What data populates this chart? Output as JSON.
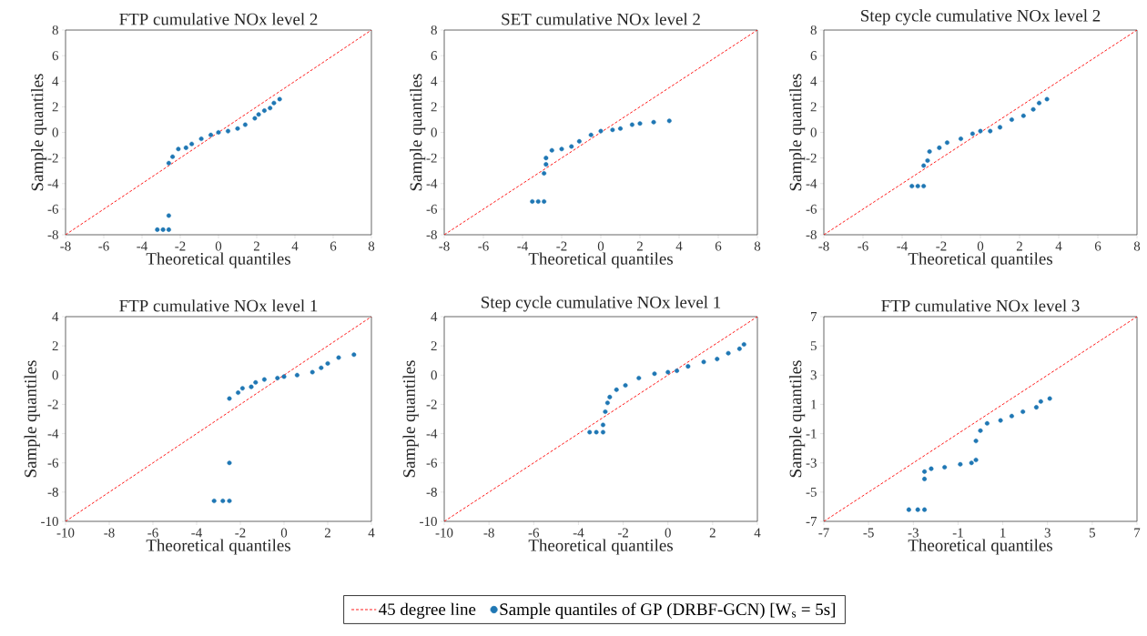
{
  "chart_data": [
    {
      "type": "scatter",
      "title": "FTP cumulative NOx level 2",
      "xlabel": "Theoretical quantiles",
      "ylabel": "Sample quantiles",
      "xlim": [
        -8,
        8
      ],
      "ylim": [
        -8,
        8
      ],
      "xticks": [
        -8,
        -6,
        -4,
        -2,
        0,
        2,
        4,
        6,
        8
      ],
      "yticks": [
        -8,
        -6,
        -4,
        -2,
        0,
        2,
        4,
        6,
        8
      ],
      "legend": "bottom",
      "series": [
        {
          "name": "45 degree line",
          "type": "line",
          "color": "#ff0000",
          "line_style": "dashed",
          "marker": "none",
          "x": [
            -8,
            8
          ],
          "values": [
            -8,
            8
          ]
        },
        {
          "name": "Sample quantiles of GP (DRBF-GCN) [W$_{s}$ = 5s]",
          "color": "#1f77b4",
          "marker": "circle",
          "x": [
            -3.2,
            -2.9,
            -2.6,
            -2.6,
            -2.6,
            -2.4,
            -2.1,
            -1.7,
            -1.4,
            -0.9,
            -0.4,
            0,
            0.5,
            1.0,
            1.4,
            1.9,
            2.1,
            2.4,
            2.7,
            2.9,
            3.2
          ],
          "values": [
            -7.6,
            -7.6,
            -7.6,
            -6.5,
            -2.4,
            -1.9,
            -1.3,
            -1.2,
            -0.9,
            -0.5,
            -0.2,
            0,
            0.1,
            0.3,
            0.6,
            1.1,
            1.4,
            1.7,
            1.9,
            2.3,
            2.6
          ]
        }
      ]
    },
    {
      "type": "scatter",
      "title": "SET cumulative NOx level 2",
      "xlabel": "Theoretical quantiles",
      "ylabel": "Sample quantiles",
      "xlim": [
        -8,
        8
      ],
      "ylim": [
        -8,
        8
      ],
      "xticks": [
        -8,
        -6,
        -4,
        -2,
        0,
        2,
        4,
        6,
        8
      ],
      "yticks": [
        -8,
        -6,
        -4,
        -2,
        0,
        2,
        4,
        6,
        8
      ],
      "series": [
        {
          "type": "line",
          "color": "#ff0000",
          "line_style": "dashed",
          "marker": "none",
          "x": [
            -8,
            8
          ],
          "values": [
            -8,
            8
          ]
        },
        {
          "color": "#1f77b4",
          "marker": "circle",
          "x": [
            -3.5,
            -3.2,
            -2.9,
            -2.9,
            -2.8,
            -2.8,
            -2.5,
            -2.0,
            -1.5,
            -1.1,
            -0.5,
            0,
            0.6,
            1.0,
            1.6,
            2.0,
            2.7,
            3.5
          ],
          "values": [
            -5.4,
            -5.4,
            -5.4,
            -3.2,
            -2.5,
            -2.0,
            -1.4,
            -1.3,
            -1.1,
            -0.7,
            -0.2,
            0.1,
            0.2,
            0.3,
            0.6,
            0.7,
            0.8,
            0.9
          ]
        }
      ]
    },
    {
      "type": "scatter",
      "title": "Step cycle cumulative NOx level 2",
      "xlabel": "Theoretical quantiles",
      "ylabel": "Sample quantiles",
      "xlim": [
        -8,
        8
      ],
      "ylim": [
        -8,
        8
      ],
      "xticks": [
        -8,
        -6,
        -4,
        -2,
        0,
        2,
        4,
        6,
        8
      ],
      "yticks": [
        -8,
        -6,
        -4,
        -2,
        0,
        2,
        4,
        6,
        8
      ],
      "series": [
        {
          "type": "line",
          "color": "#ff0000",
          "line_style": "dashed",
          "marker": "none",
          "x": [
            -8,
            8
          ],
          "values": [
            -8,
            8
          ]
        },
        {
          "color": "#1f77b4",
          "marker": "circle",
          "x": [
            -3.5,
            -3.2,
            -2.9,
            -2.9,
            -2.7,
            -2.6,
            -2.1,
            -1.7,
            -1.0,
            -0.4,
            0,
            0.5,
            1.0,
            1.6,
            2.2,
            2.7,
            3.0,
            3.4
          ],
          "values": [
            -4.2,
            -4.2,
            -4.2,
            -2.6,
            -2.2,
            -1.5,
            -1.2,
            -0.8,
            -0.5,
            -0.1,
            0.1,
            0.1,
            0.4,
            1.0,
            1.3,
            1.8,
            2.3,
            2.6
          ]
        }
      ]
    },
    {
      "type": "scatter",
      "title": "FTP cumulative NOx level 1",
      "xlabel": "Theoretical quantiles",
      "ylabel": "Sample quantiles",
      "xlim": [
        -10,
        4
      ],
      "ylim": [
        -10,
        4
      ],
      "xticks": [
        -10,
        -8,
        -6,
        -4,
        -2,
        0,
        2,
        4
      ],
      "yticks": [
        -10,
        -8,
        -6,
        -4,
        -2,
        0,
        2,
        4
      ],
      "series": [
        {
          "type": "line",
          "color": "#ff0000",
          "line_style": "dashed",
          "marker": "none",
          "x": [
            -10,
            4
          ],
          "values": [
            -10,
            4
          ]
        },
        {
          "color": "#1f77b4",
          "marker": "circle",
          "x": [
            -3.2,
            -2.8,
            -2.5,
            -2.5,
            -2.5,
            -2.1,
            -1.9,
            -1.5,
            -1.3,
            -0.9,
            -0.3,
            0,
            0.6,
            1.3,
            1.7,
            2.0,
            2.5,
            3.2
          ],
          "values": [
            -8.6,
            -8.6,
            -8.6,
            -6.0,
            -1.6,
            -1.2,
            -0.9,
            -0.8,
            -0.5,
            -0.3,
            -0.2,
            -0.1,
            0,
            0.2,
            0.5,
            0.8,
            1.2,
            1.4
          ]
        }
      ]
    },
    {
      "type": "scatter",
      "title": "Step cycle cumulative NOx level 1",
      "xlabel": "Theoretical quantiles",
      "ylabel": "Sample quantiles",
      "xlim": [
        -10,
        4
      ],
      "ylim": [
        -10,
        4
      ],
      "xticks": [
        -10,
        -8,
        -6,
        -4,
        -2,
        0,
        2,
        4
      ],
      "yticks": [
        -10,
        -8,
        -6,
        -4,
        -2,
        0,
        2,
        4
      ],
      "series": [
        {
          "type": "line",
          "color": "#ff0000",
          "line_style": "dashed",
          "marker": "none",
          "x": [
            -10,
            4
          ],
          "values": [
            -10,
            4
          ]
        },
        {
          "color": "#1f77b4",
          "marker": "circle",
          "x": [
            -3.5,
            -3.2,
            -2.9,
            -2.9,
            -2.8,
            -2.7,
            -2.6,
            -2.3,
            -1.9,
            -1.3,
            -0.6,
            0,
            0.4,
            0.9,
            1.6,
            2.2,
            2.7,
            3.2,
            3.4
          ],
          "values": [
            -3.9,
            -3.9,
            -3.9,
            -3.4,
            -2.5,
            -1.9,
            -1.5,
            -1.0,
            -0.7,
            -0.2,
            0.1,
            0.2,
            0.3,
            0.6,
            0.9,
            1.1,
            1.5,
            1.8,
            2.1
          ]
        }
      ]
    },
    {
      "type": "scatter",
      "title": "FTP cumulative NOx level 3",
      "xlabel": "Theoretical quantiles",
      "ylabel": "Sample quantiles",
      "xlim": [
        -7,
        7
      ],
      "ylim": [
        -7,
        7
      ],
      "xticks": [
        -7,
        -5,
        -3,
        -1,
        1,
        3,
        5,
        7
      ],
      "yticks": [
        -7,
        -5,
        -3,
        -1,
        1,
        3,
        5,
        7
      ],
      "series": [
        {
          "type": "line",
          "color": "#ff0000",
          "line_style": "dashed",
          "marker": "none",
          "x": [
            -7,
            7
          ],
          "values": [
            -7,
            7
          ]
        },
        {
          "color": "#1f77b4",
          "marker": "circle",
          "x": [
            -3.2,
            -2.8,
            -2.5,
            -2.5,
            -2.5,
            -2.2,
            -1.6,
            -0.9,
            -0.4,
            -0.2,
            -0.2,
            0,
            0.3,
            0.9,
            1.4,
            1.9,
            2.5,
            2.7,
            3.1
          ],
          "values": [
            -6.2,
            -6.2,
            -6.2,
            -4.1,
            -3.6,
            -3.4,
            -3.3,
            -3.1,
            -3.0,
            -2.8,
            -1.5,
            -0.8,
            -0.3,
            -0.1,
            0.2,
            0.5,
            0.8,
            1.2,
            1.4
          ]
        }
      ]
    }
  ]
}
